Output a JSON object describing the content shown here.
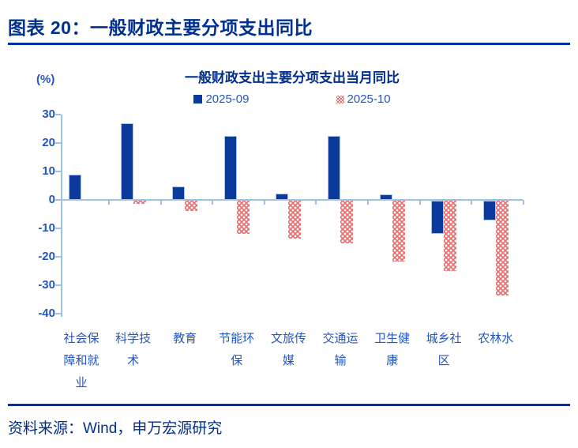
{
  "header": {
    "title": "图表 20：一般财政主要分项支出同比"
  },
  "footer": {
    "source": "资料来源：Wind，申万宏源研究"
  },
  "chart": {
    "unit_label": "(%)"
  },
  "colors": {
    "title_navy": "#01308F",
    "rule_blue": "#0233A0",
    "bar_blue": "#0C3A9C",
    "bar_red": "#E96B6B",
    "axis_light_blue": "#9CC2E8",
    "axis_text_blue": "#2356C0"
  },
  "chart_data": {
    "type": "bar",
    "title": "一般财政支出主要分项支出当月同比",
    "xlabel": "",
    "ylabel": "(%)",
    "ylim": [
      -40,
      30
    ],
    "yticks": [
      30,
      20,
      10,
      0,
      -10,
      -20,
      -30,
      -40
    ],
    "grid": false,
    "legend_position": "top",
    "categories": [
      "社会保障和就业",
      "科学技术",
      "教育",
      "节能环保",
      "文旅传媒",
      "交通运输",
      "卫生健康",
      "城乡社区",
      "农林水"
    ],
    "series": [
      {
        "name": "2025-09",
        "color": "#0C3A9C",
        "pattern": "solid",
        "values": [
          8.8,
          26.9,
          4.6,
          22.6,
          2.3,
          22.5,
          2.0,
          -11.7,
          -6.9
        ]
      },
      {
        "name": "2025-10",
        "color": "#E96B6B",
        "pattern": "dotted",
        "values": [
          0.0,
          -1.0,
          -3.5,
          -11.6,
          -13.4,
          -15.0,
          -21.5,
          -24.6,
          -33.2
        ]
      }
    ]
  }
}
